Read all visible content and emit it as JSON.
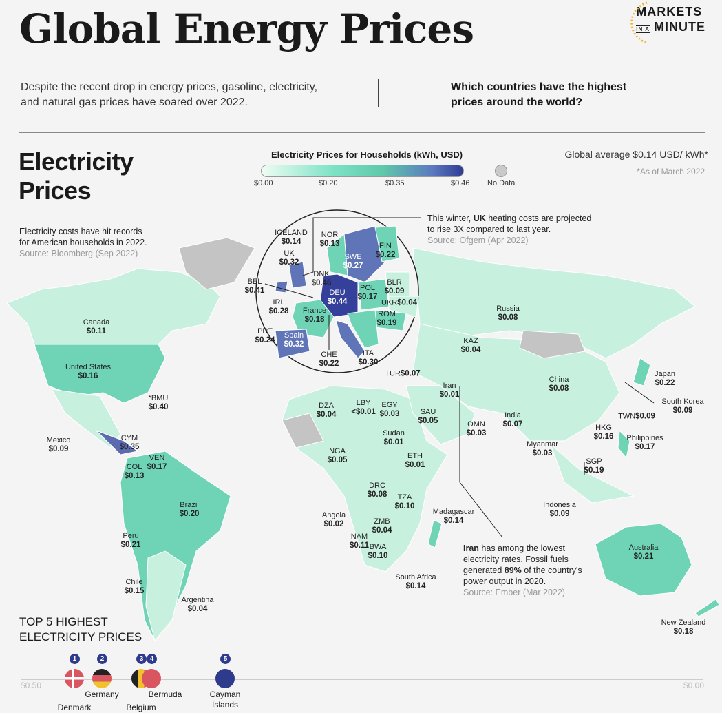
{
  "header": {
    "title": "Global Energy Prices",
    "subtitle": "Despite the recent drop in energy prices, gasoline, electricity, and natural gas prices have soared over 2022.",
    "question": "Which countries have the highest prices around the world?",
    "logo_line1": "MARKETS",
    "logo_in_a": "IN A",
    "logo_minute": "MINUTE"
  },
  "section": {
    "title_line1": "Electricity",
    "title_line2": "Prices"
  },
  "legend": {
    "title": "Electricity Prices for Households (kWh, USD)",
    "ticks": [
      "$0.00",
      "$0.20",
      "$0.35",
      "$0.46"
    ],
    "no_data": "No Data",
    "colors": {
      "low": "#effcf4",
      "mid": "#6fd3b5",
      "high": "#2f3c93",
      "nodata": "#c9c9c9"
    }
  },
  "global_average": "Global average $0.14 USD/ kWh*",
  "as_of": "*As of March 2022",
  "notes": {
    "usa": {
      "line1": "Electricity costs have hit records",
      "line2": "for American households in 2022.",
      "source": "Source: Bloomberg (Sep 2022)"
    },
    "uk": {
      "pre": "This winter, ",
      "bold": "UK",
      "post": " heating costs are projected",
      "line2": "to rise 3X compared to last year.",
      "source": "Source: Ofgem (Apr 2022)"
    },
    "iran": {
      "bold": "Iran",
      "post": " has among the lowest",
      "line2": "electricity rates. Fossil fuels",
      "line3_pre": "generated ",
      "line3_bold": "89%",
      "line3_post": " of the country's",
      "line4": "power output in 2020.",
      "source": "Source:  Ember (Mar 2022)"
    }
  },
  "countries": [
    {
      "name": "Canada",
      "value": "$0.11"
    },
    {
      "name": "United States",
      "value": "$0.16"
    },
    {
      "name": "*BMU",
      "value": "$0.40"
    },
    {
      "name": "Mexico",
      "value": "$0.09"
    },
    {
      "name": "CYM",
      "value": "$0.35"
    },
    {
      "name": "VEN",
      "value": "$0.17"
    },
    {
      "name": "COL",
      "value": "$0.13"
    },
    {
      "name": "Brazil",
      "value": "$0.20"
    },
    {
      "name": "Peru",
      "value": "$0.21"
    },
    {
      "name": "Chile",
      "value": "$0.15"
    },
    {
      "name": "Argentina",
      "value": "$0.04"
    },
    {
      "name": "Russia",
      "value": "$0.08"
    },
    {
      "name": "KAZ",
      "value": "$0.04"
    },
    {
      "name": "TUR",
      "value": "$0.07"
    },
    {
      "name": "Iran",
      "value": "$0.01"
    },
    {
      "name": "China",
      "value": "$0.08"
    },
    {
      "name": "Japan",
      "value": "$0.22"
    },
    {
      "name": "South Korea",
      "value": "$0.09"
    },
    {
      "name": "TWN",
      "value": "$0.09"
    },
    {
      "name": "HKG",
      "value": "$0.16"
    },
    {
      "name": "Philippines",
      "value": "$0.17"
    },
    {
      "name": "DZA",
      "value": "$0.04"
    },
    {
      "name": "LBY",
      "value": "<$0.01"
    },
    {
      "name": "EGY",
      "value": "$0.03"
    },
    {
      "name": "SAU",
      "value": "$0.05"
    },
    {
      "name": "OMN",
      "value": "$0.03"
    },
    {
      "name": "India",
      "value": "$0.07"
    },
    {
      "name": "Myanmar",
      "value": "$0.03"
    },
    {
      "name": "SGP",
      "value": "$0.19"
    },
    {
      "name": "Sudan",
      "value": "$0.01"
    },
    {
      "name": "NGA",
      "value": "$0.05"
    },
    {
      "name": "ETH",
      "value": "$0.01"
    },
    {
      "name": "DRC",
      "value": "$0.08"
    },
    {
      "name": "TZA",
      "value": "$0.10"
    },
    {
      "name": "Madagascar",
      "value": "$0.14"
    },
    {
      "name": "Angola",
      "value": "$0.02"
    },
    {
      "name": "ZMB",
      "value": "$0.04"
    },
    {
      "name": "NAM",
      "value": "$0.11"
    },
    {
      "name": "BWA",
      "value": "$0.10"
    },
    {
      "name": "South Africa",
      "value": "$0.14"
    },
    {
      "name": "Indonesia",
      "value": "$0.09"
    },
    {
      "name": "Australia",
      "value": "$0.21"
    },
    {
      "name": "New Zealand",
      "value": "$0.18"
    },
    {
      "name": "ICELAND",
      "value": "$0.14"
    },
    {
      "name": "NOR",
      "value": "$0.13"
    },
    {
      "name": "UK",
      "value": "$0.32"
    },
    {
      "name": "SWE",
      "value": "$0.27"
    },
    {
      "name": "FIN",
      "value": "$0.22"
    },
    {
      "name": "DNK",
      "value": "$0.46"
    },
    {
      "name": "BEL",
      "value": "$0.41"
    },
    {
      "name": "BLR",
      "value": "$0.09"
    },
    {
      "name": "POL",
      "value": "$0.17"
    },
    {
      "name": "DEU",
      "value": "$0.44"
    },
    {
      "name": "UKR",
      "value": "$0.04"
    },
    {
      "name": "IRL",
      "value": "$0.28"
    },
    {
      "name": "France",
      "value": "$0.18"
    },
    {
      "name": "ROM",
      "value": "$0.19"
    },
    {
      "name": "PRT",
      "value": "$0.24"
    },
    {
      "name": "Spain",
      "value": "$0.32"
    },
    {
      "name": "CHE",
      "value": "$0.22"
    },
    {
      "name": "ITA",
      "value": "$0.30"
    }
  ],
  "top5": {
    "title_line1": "TOP 5 HIGHEST",
    "title_line2": "ELECTRICITY PRICES",
    "axis_left": "$0.50",
    "axis_right": "$0.00",
    "items": [
      {
        "rank": "1",
        "name": "Denmark",
        "value": 0.46
      },
      {
        "rank": "2",
        "name": "Germany",
        "value": 0.44
      },
      {
        "rank": "3",
        "name": "Belgium",
        "value": 0.41
      },
      {
        "rank": "4",
        "name": "Bermuda",
        "value": 0.4
      },
      {
        "rank": "5",
        "name": "Cayman Islands",
        "value": 0.35
      }
    ]
  }
}
